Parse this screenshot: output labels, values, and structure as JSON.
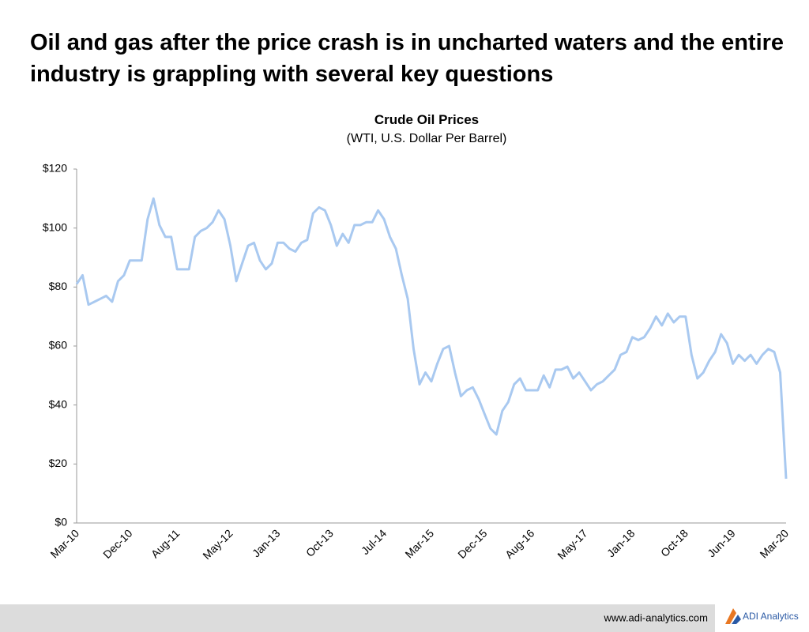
{
  "headline": "Oil and gas after the price crash is in uncharted waters and the entire industry is grappling with several key questions",
  "chart_data": {
    "type": "line",
    "title": "Crude Oil Prices",
    "subtitle": "(WTI, U.S. Dollar Per Barrel)",
    "categories": [
      "Mar-10",
      null,
      null,
      null,
      null,
      null,
      null,
      null,
      null,
      "Dec-10",
      null,
      null,
      null,
      null,
      null,
      null,
      null,
      "Aug-11",
      null,
      null,
      null,
      null,
      null,
      null,
      null,
      null,
      "May-12",
      null,
      null,
      null,
      null,
      null,
      null,
      null,
      "Jan-13",
      null,
      null,
      null,
      null,
      null,
      null,
      null,
      null,
      "Oct-13",
      null,
      null,
      null,
      null,
      null,
      null,
      null,
      null,
      "Jul-14",
      null,
      null,
      null,
      null,
      null,
      null,
      null,
      "Mar-15",
      null,
      null,
      null,
      null,
      null,
      null,
      null,
      null,
      "Dec-15",
      null,
      null,
      null,
      null,
      null,
      null,
      null,
      "Aug-16",
      null,
      null,
      null,
      null,
      null,
      null,
      null,
      null,
      "May-17",
      null,
      null,
      null,
      null,
      null,
      null,
      null,
      "Jan-18",
      null,
      null,
      null,
      null,
      null,
      null,
      null,
      null,
      "Oct-18",
      null,
      null,
      null,
      null,
      null,
      null,
      null,
      "Jun-19",
      null,
      null,
      null,
      null,
      null,
      null,
      null,
      null,
      "Mar-20"
    ],
    "series": [
      {
        "name": "WTI",
        "color": "#a9c9f0",
        "values": [
          81,
          84,
          74,
          75,
          76,
          77,
          75,
          82,
          84,
          89,
          89,
          89,
          103,
          110,
          101,
          97,
          97,
          86,
          86,
          86,
          97,
          99,
          100,
          102,
          106,
          103,
          94,
          82,
          88,
          94,
          95,
          89,
          86,
          88,
          95,
          95,
          93,
          92,
          95,
          96,
          105,
          107,
          106,
          101,
          94,
          98,
          95,
          101,
          101,
          102,
          102,
          106,
          103,
          97,
          93,
          84,
          76,
          59,
          47,
          51,
          48,
          54,
          59,
          60,
          51,
          43,
          45,
          46,
          42,
          37,
          32,
          30,
          38,
          41,
          47,
          49,
          45,
          45,
          45,
          50,
          46,
          52,
          52,
          53,
          49,
          51,
          48,
          45,
          47,
          48,
          50,
          52,
          57,
          58,
          63,
          62,
          63,
          66,
          70,
          67,
          71,
          68,
          70,
          70,
          57,
          49,
          51,
          55,
          58,
          64,
          61,
          54,
          57,
          55,
          57,
          54,
          57,
          59,
          58,
          51,
          15
        ]
      }
    ],
    "ylim": [
      0,
      120
    ],
    "yticks": [
      {
        "value": 0,
        "label": "$0"
      },
      {
        "value": 20,
        "label": "$20"
      },
      {
        "value": 40,
        "label": "$40"
      },
      {
        "value": 60,
        "label": "$60"
      },
      {
        "value": 80,
        "label": "$80"
      },
      {
        "value": 100,
        "label": "$100"
      },
      {
        "value": 120,
        "label": "$120"
      }
    ],
    "grid": false
  },
  "footer": {
    "url": "www.adi-analytics.com",
    "logo": "ADI Analytics"
  }
}
